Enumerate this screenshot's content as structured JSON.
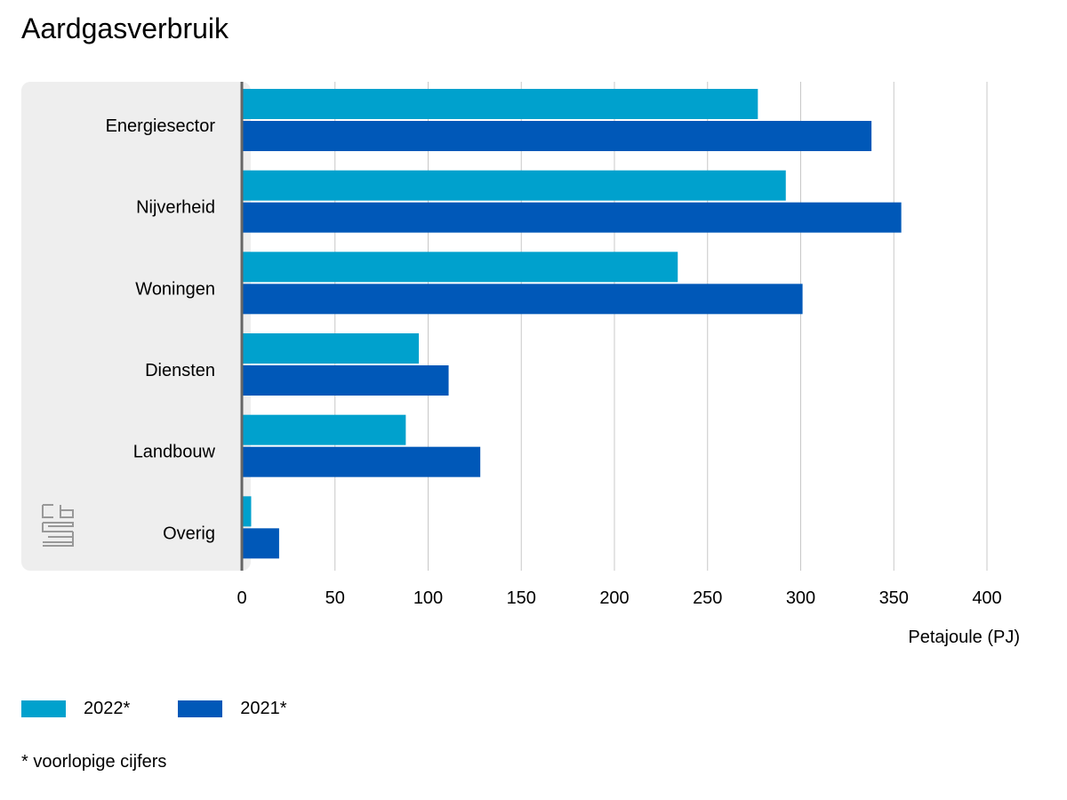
{
  "chart_data": {
    "type": "bar",
    "orientation": "horizontal",
    "title": "Aardgasverbruik",
    "xlabel": "Petajoule (PJ)",
    "ylabel": "",
    "xlim": [
      0,
      400
    ],
    "xticks": [
      0,
      50,
      100,
      150,
      200,
      250,
      300,
      350,
      400
    ],
    "grid": true,
    "legend_position": "bottom-left",
    "categories": [
      "Energiesector",
      "Nijverheid",
      "Woningen",
      "Diensten",
      "Landbouw",
      "Overig"
    ],
    "series": [
      {
        "name": "2022*",
        "color": "#00a1cd",
        "values": [
          277,
          292,
          234,
          95,
          88,
          5
        ]
      },
      {
        "name": "2021*",
        "color": "#0058b8",
        "values": [
          338,
          354,
          301,
          111,
          128,
          20
        ]
      }
    ],
    "footnote": "* voorlopige cijfers"
  },
  "colors": {
    "panel_background": "#eeeeee",
    "gridline": "#c8c8c8",
    "axis_line": "#666666",
    "logo": "#999999"
  },
  "icons": {
    "logo": "cbs-logo-icon"
  }
}
